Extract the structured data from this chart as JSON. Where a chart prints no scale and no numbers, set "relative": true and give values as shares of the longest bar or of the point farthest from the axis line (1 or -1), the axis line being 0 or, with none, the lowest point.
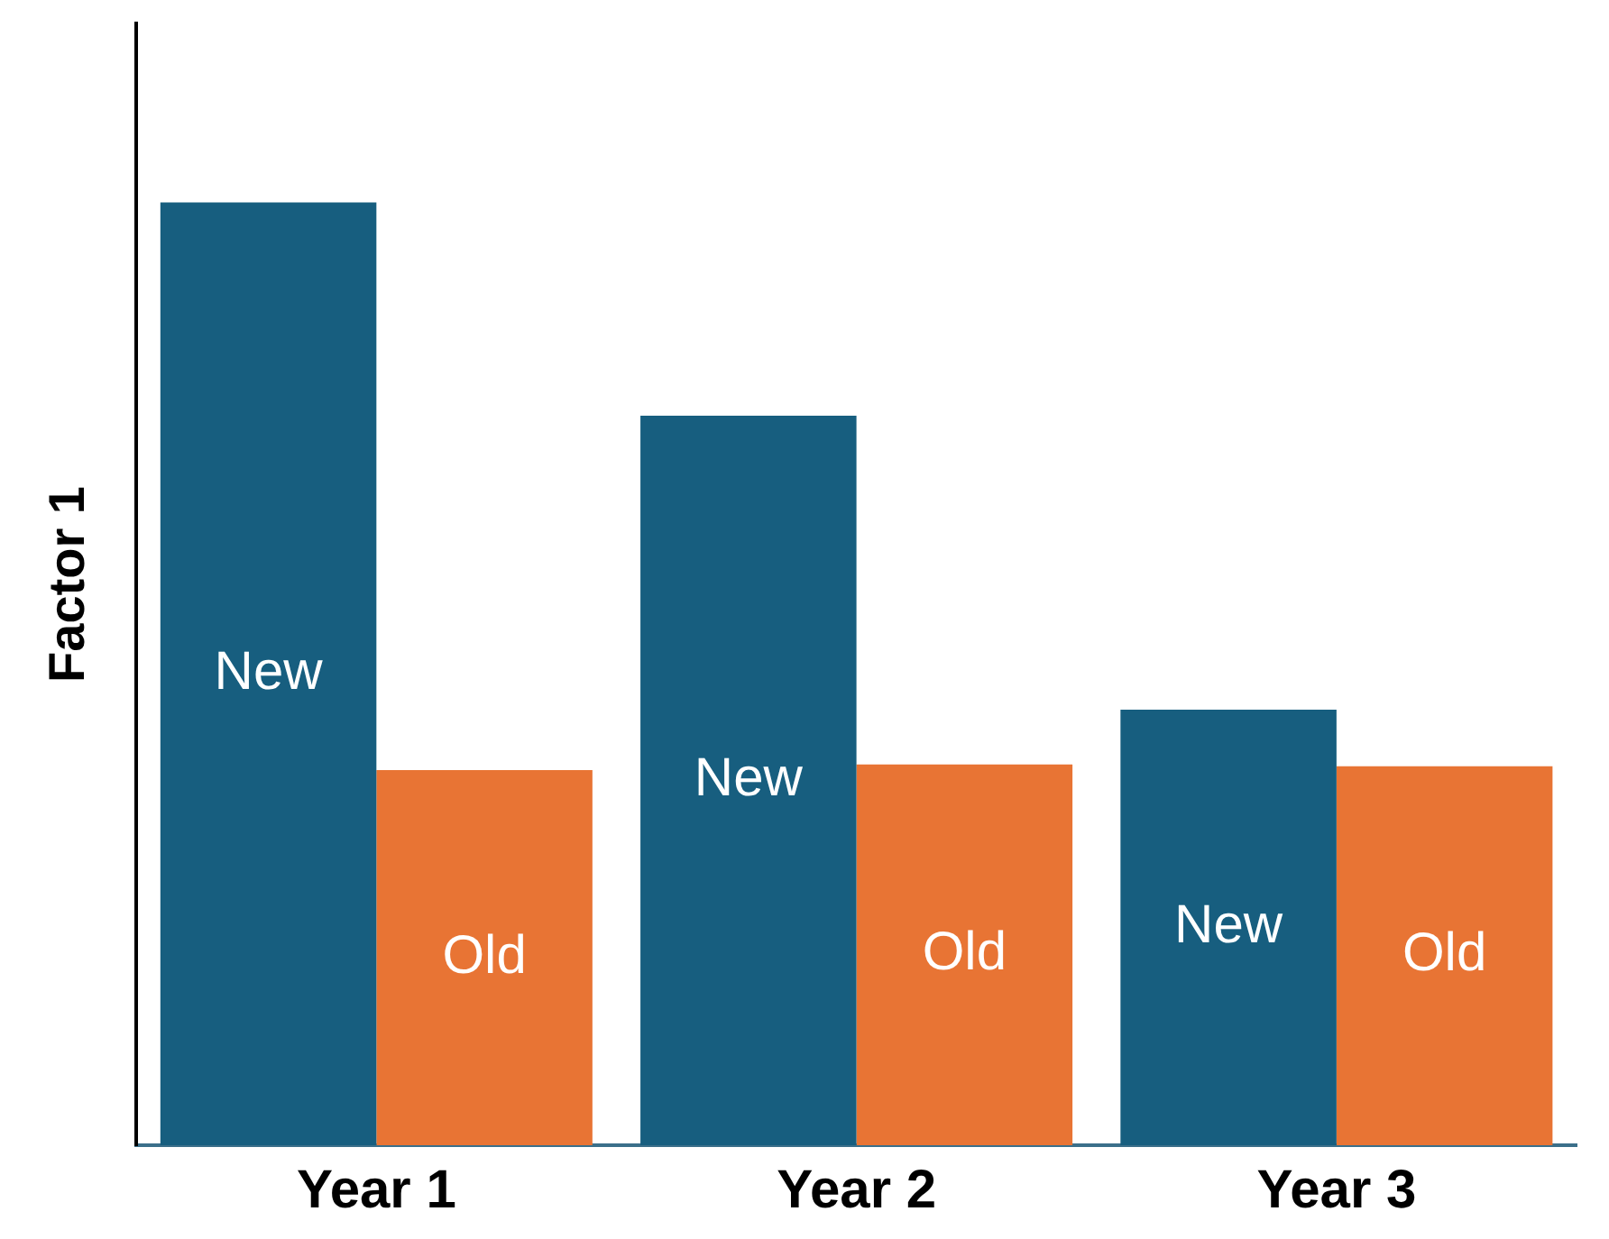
{
  "chart_data": {
    "type": "bar",
    "relative": true,
    "ylabel": "Factor 1",
    "categories": [
      "Year 1",
      "Year 2",
      "Year 3"
    ],
    "series": [
      {
        "name": "New",
        "color": "#175e7f",
        "values": [
          1,
          0.774,
          0.462
        ]
      },
      {
        "name": "Old",
        "color": "#e87434",
        "values": [
          0.398,
          0.404,
          0.402
        ]
      }
    ],
    "legend": false,
    "grid": false
  }
}
